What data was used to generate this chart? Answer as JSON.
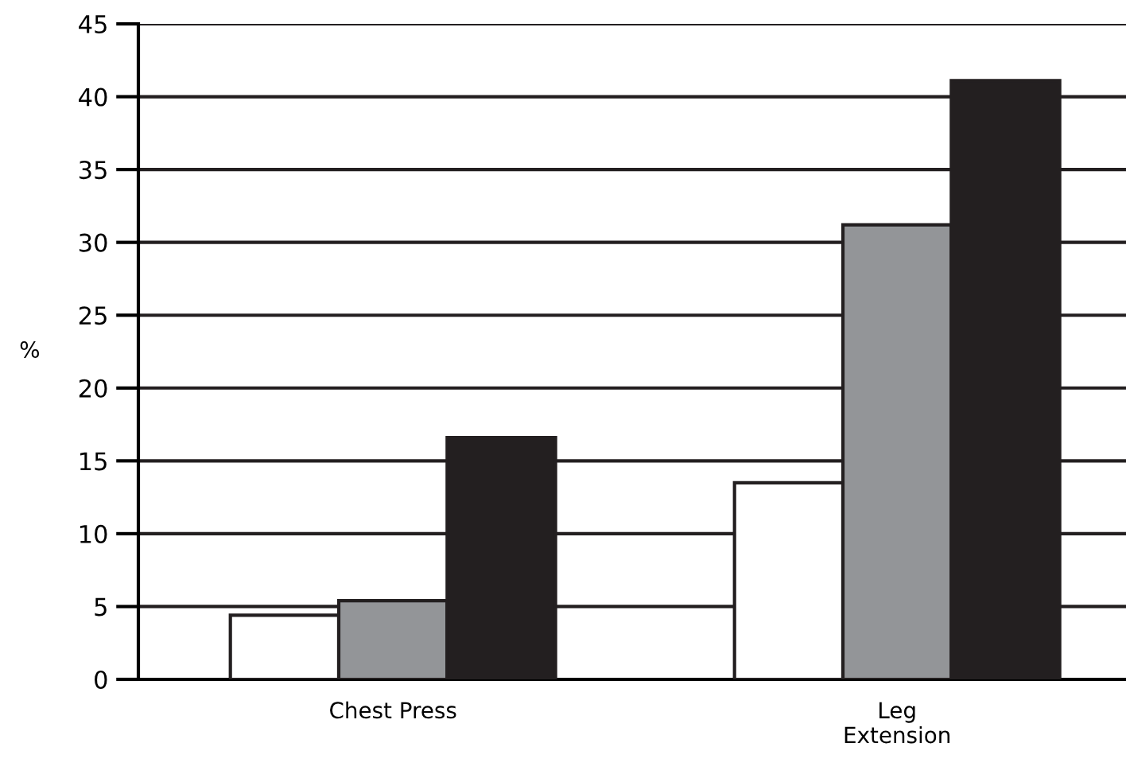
{
  "chart_data": {
    "type": "bar",
    "ylabel": "%",
    "categories": [
      "Chest Press",
      "Leg\nExtension"
    ],
    "series": [
      {
        "color": "#ffffff",
        "values": [
          4.4,
          13.5
        ]
      },
      {
        "color": "#939598",
        "values": [
          5.4,
          31.2
        ]
      },
      {
        "color": "#231f20",
        "values": [
          16.6,
          41.1
        ]
      }
    ],
    "ylim": [
      0,
      45
    ],
    "yticks": [
      0,
      5,
      10,
      15,
      20,
      25,
      30,
      35,
      40,
      45
    ],
    "grid": "y",
    "legend": false
  }
}
